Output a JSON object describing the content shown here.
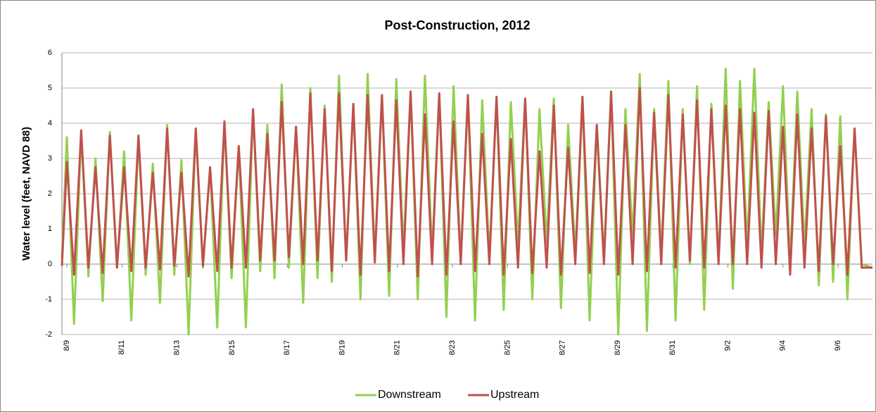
{
  "chart_data": {
    "type": "line",
    "title": "Post-Construction, 2012",
    "y_label": "Water level (feet, NAVD 88)",
    "x": [
      -0.18,
      0,
      0.26,
      0.52,
      0.78,
      1.04,
      1.3,
      1.56,
      1.82,
      2.08,
      2.34,
      2.6,
      2.86,
      3.12,
      3.38,
      3.64,
      3.9,
      4.16,
      4.42,
      4.68,
      4.94,
      5.2,
      5.46,
      5.72,
      5.98,
      6.24,
      6.5,
      6.76,
      7.02,
      7.28,
      7.54,
      7.8,
      8.06,
      8.32,
      8.58,
      8.84,
      9.1,
      9.36,
      9.62,
      9.88,
      10.14,
      10.4,
      10.66,
      10.92,
      11.18,
      11.44,
      11.7,
      11.96,
      12.22,
      12.48,
      12.74,
      13,
      13.26,
      13.52,
      13.78,
      14.04,
      14.3,
      14.56,
      14.82,
      15.08,
      15.34,
      15.6,
      15.86,
      16.12,
      16.38,
      16.64,
      16.9,
      17.16,
      17.42,
      17.68,
      17.94,
      18.2,
      18.46,
      18.72,
      18.98,
      19.24,
      19.5,
      19.76,
      20.02,
      20.28,
      20.54,
      20.8,
      21.06,
      21.32,
      21.58,
      21.84,
      22.1,
      22.36,
      22.62,
      22.88,
      23.14,
      23.4,
      23.66,
      23.92,
      24.18,
      24.44,
      24.7,
      24.96,
      25.22,
      25.48,
      25.74,
      26,
      26.26,
      26.52,
      26.78,
      27.04,
      27.3,
      27.56,
      27.82,
      28.08,
      28.34,
      28.6,
      28.86,
      29.25
    ],
    "series": [
      {
        "name": "Downstream",
        "color": "#92d050",
        "values": [
          0.2,
          3.6,
          -1.7,
          3.75,
          -0.35,
          3.0,
          -1.05,
          3.75,
          -0.1,
          3.2,
          -1.6,
          3.6,
          -0.3,
          2.85,
          -1.1,
          3.95,
          -0.3,
          2.95,
          -2.0,
          3.85,
          -0.1,
          2.75,
          -1.8,
          4.05,
          -0.4,
          3.35,
          -1.8,
          4.4,
          -0.2,
          3.95,
          -0.4,
          5.1,
          -0.1,
          3.9,
          -1.1,
          5.0,
          -0.4,
          4.5,
          -0.5,
          5.35,
          0.1,
          4.55,
          -1.0,
          5.4,
          0.2,
          4.8,
          -0.9,
          5.25,
          0.4,
          4.9,
          -1.0,
          5.35,
          0.3,
          4.85,
          -1.5,
          5.05,
          0.1,
          4.8,
          -1.6,
          4.65,
          0.2,
          4.75,
          -1.3,
          4.6,
          0.6,
          4.7,
          -1.0,
          4.4,
          0.6,
          4.7,
          -1.25,
          3.95,
          0.3,
          4.75,
          -1.6,
          3.95,
          0.2,
          4.9,
          -2.0,
          4.4,
          0.8,
          5.4,
          -1.9,
          4.4,
          0.3,
          5.2,
          -1.6,
          4.4,
          0.0,
          5.05,
          -1.3,
          4.55,
          0.1,
          5.55,
          -0.7,
          5.2,
          0.5,
          5.55,
          0.3,
          4.6,
          0.8,
          5.05,
          0.0,
          4.9,
          0.5,
          4.4,
          -0.6,
          4.25,
          -0.5,
          4.2,
          -1.0,
          3.85,
          0.0,
          -0.1
        ]
      },
      {
        "name": "Upstream",
        "color": "#c0504d",
        "values": [
          -0.05,
          2.9,
          -0.3,
          3.8,
          -0.1,
          2.75,
          -0.25,
          3.65,
          -0.1,
          2.75,
          -0.2,
          3.65,
          -0.1,
          2.6,
          -0.15,
          3.85,
          -0.05,
          2.6,
          -0.35,
          3.85,
          -0.05,
          2.75,
          -0.2,
          4.05,
          -0.1,
          3.35,
          -0.1,
          4.4,
          0.1,
          3.7,
          0.1,
          4.6,
          0.2,
          3.9,
          0.0,
          4.85,
          0.1,
          4.4,
          -0.2,
          4.85,
          0.1,
          4.55,
          -0.3,
          4.8,
          0.05,
          4.8,
          -0.2,
          4.65,
          0.0,
          4.9,
          -0.35,
          4.25,
          0.0,
          4.85,
          -0.3,
          4.05,
          0.0,
          4.8,
          -0.2,
          3.7,
          0.0,
          4.75,
          -0.3,
          3.55,
          -0.1,
          4.7,
          -0.25,
          3.2,
          -0.1,
          4.5,
          -0.3,
          3.3,
          0.0,
          4.75,
          -0.25,
          3.95,
          0.0,
          4.9,
          -0.3,
          3.95,
          0.0,
          5.0,
          -0.2,
          4.3,
          0.0,
          4.8,
          -0.1,
          4.25,
          0.1,
          4.65,
          -0.1,
          4.4,
          0.0,
          4.5,
          0.0,
          4.4,
          0.0,
          4.3,
          -0.1,
          4.35,
          0.0,
          3.9,
          -0.3,
          4.25,
          -0.1,
          3.85,
          -0.2,
          4.2,
          0.0,
          3.35,
          -0.3,
          3.85,
          -0.1,
          -0.1
        ]
      }
    ],
    "xlim": [
      -0.18,
      29.25
    ],
    "xticks": [
      {
        "value": 0,
        "label": "8/9"
      },
      {
        "value": 2,
        "label": "8/11"
      },
      {
        "value": 4,
        "label": "8/13"
      },
      {
        "value": 6,
        "label": "8/15"
      },
      {
        "value": 8,
        "label": "8/17"
      },
      {
        "value": 10,
        "label": "8/19"
      },
      {
        "value": 12,
        "label": "8/21"
      },
      {
        "value": 14,
        "label": "8/23"
      },
      {
        "value": 16,
        "label": "8/25"
      },
      {
        "value": 18,
        "label": "8/27"
      },
      {
        "value": 20,
        "label": "8/29"
      },
      {
        "value": 22,
        "label": "8/31"
      },
      {
        "value": 24,
        "label": "9/2"
      },
      {
        "value": 26,
        "label": "9/4"
      },
      {
        "value": 28,
        "label": "9/6"
      }
    ],
    "ylim": [
      -2,
      6
    ],
    "yticks": [
      -2,
      -1,
      0,
      1,
      2,
      3,
      4,
      5,
      6
    ],
    "grid": true,
    "legend": "bottom"
  }
}
